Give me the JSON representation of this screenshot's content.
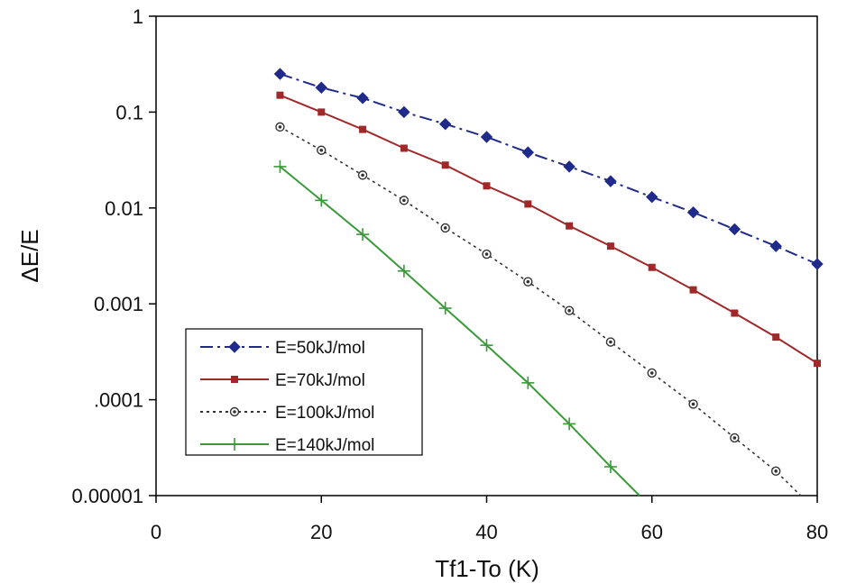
{
  "chart_data": {
    "type": "line",
    "xlabel": "Tf1-To (K)",
    "ylabel": "ΔE/E",
    "xlim": [
      0,
      80
    ],
    "ylim": [
      1e-05,
      1
    ],
    "y_scale": "log",
    "grid": false,
    "legend_position": "lower-left",
    "x_ticks": [
      0,
      20,
      40,
      60,
      80
    ],
    "x_tick_labels": [
      "0",
      "20",
      "40",
      "60",
      "80"
    ],
    "y_ticks": [
      1,
      0.1,
      0.01,
      0.001,
      0.0001,
      1e-05
    ],
    "y_tick_labels": [
      "1",
      "0.1",
      "0.01",
      "0.001",
      ".0001",
      "0.00001"
    ],
    "series": [
      {
        "name": "E=50kJ/mol",
        "color": "#1f2a8a",
        "line_style": "dash-dot",
        "marker": "diamond",
        "x": [
          15,
          20,
          25,
          30,
          35,
          40,
          45,
          50,
          55,
          60,
          65,
          70,
          75,
          80
        ],
        "y": [
          0.25,
          0.18,
          0.14,
          0.1,
          0.075,
          0.055,
          0.038,
          0.027,
          0.019,
          0.013,
          0.009,
          0.006,
          0.004,
          0.0026
        ]
      },
      {
        "name": "E=70kJ/mol",
        "color": "#a02828",
        "line_style": "solid",
        "marker": "square",
        "x": [
          15,
          20,
          25,
          30,
          35,
          40,
          45,
          50,
          55,
          60,
          65,
          70,
          75,
          80
        ],
        "y": [
          0.15,
          0.1,
          0.066,
          0.042,
          0.028,
          0.017,
          0.011,
          0.0065,
          0.004,
          0.0024,
          0.0014,
          0.0008,
          0.00045,
          0.00024
        ]
      },
      {
        "name": "E=100kJ/mol",
        "color": "#333333",
        "line_style": "dotted",
        "marker": "circle",
        "x": [
          15,
          20,
          25,
          30,
          35,
          40,
          45,
          50,
          55,
          60,
          65,
          70,
          75,
          78
        ],
        "y": [
          0.07,
          0.04,
          0.022,
          0.012,
          0.0062,
          0.0033,
          0.0017,
          0.00085,
          0.0004,
          0.00019,
          9e-05,
          4e-05,
          1.8e-05,
          1e-05
        ]
      },
      {
        "name": "E=140kJ/mol",
        "color": "#3a9a3a",
        "line_style": "solid",
        "marker": "plus",
        "x": [
          15,
          20,
          25,
          30,
          35,
          40,
          45,
          50,
          55,
          58.5
        ],
        "y": [
          0.027,
          0.012,
          0.0053,
          0.0022,
          0.0009,
          0.00037,
          0.00015,
          5.6e-05,
          2e-05,
          1e-05
        ]
      }
    ]
  }
}
